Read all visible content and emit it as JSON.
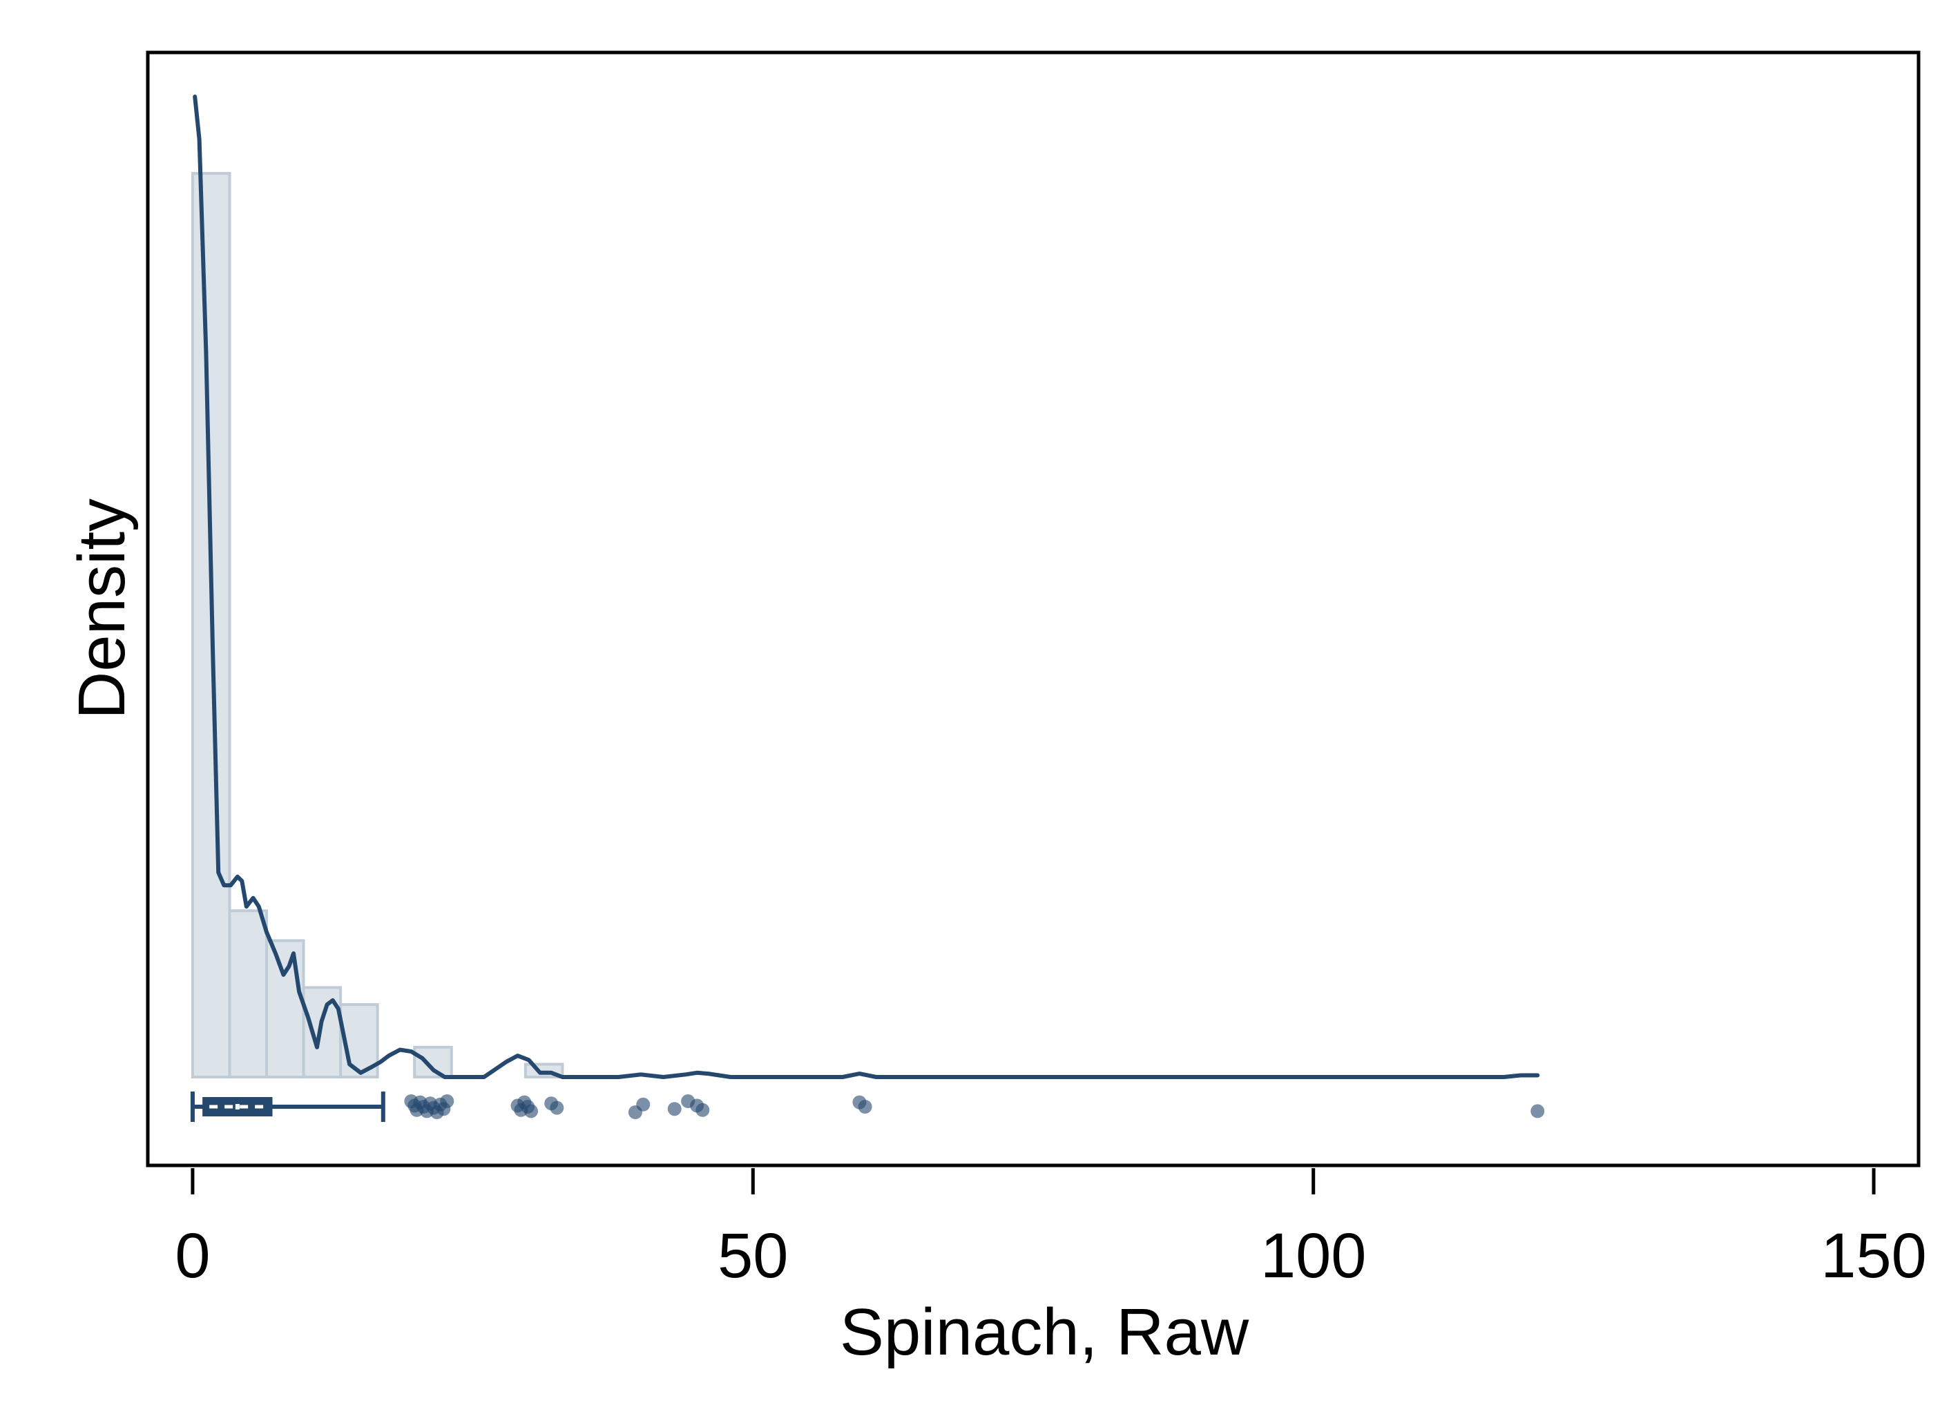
{
  "chart_data": {
    "type": "histogram",
    "title": "",
    "xlabel": "Spinach, Raw",
    "ylabel": "Density",
    "xlim": [
      -4,
      154
    ],
    "x_ticks": [
      0,
      50,
      100,
      150
    ],
    "x_tick_labels": [
      "0",
      "50",
      "100",
      "150"
    ],
    "y_ticks_shown": false,
    "grid": false,
    "legend": "none",
    "colors": {
      "line": "#24486e",
      "bar_fill": "#dce3e9",
      "bar_stroke": "#bfcbd6",
      "points": "#24486e",
      "frame": "#000000"
    },
    "histogram": {
      "bin_edges": [
        0,
        3.3,
        6.6,
        9.9,
        13.2,
        16.5,
        19.8,
        23.1,
        26.4,
        29.7,
        33.0
      ],
      "density": [
        0.106,
        0.0195,
        0.016,
        0.0105,
        0.0085,
        0.0,
        0.0035,
        0.0,
        0.0,
        0.0015
      ]
    },
    "density_curve": {
      "x": [
        0.2,
        0.6,
        1.2,
        1.8,
        2.3,
        2.8,
        3.4,
        4.0,
        4.4,
        4.8,
        5.4,
        5.9,
        6.6,
        7.4,
        8.1,
        8.6,
        9.0,
        9.5,
        10.3,
        11.1,
        11.5,
        12.0,
        12.5,
        13.0,
        14.0,
        15.0,
        16.0,
        16.8,
        17.5,
        18.5,
        19.5,
        20.5,
        21.5,
        22.5,
        23.5,
        24.5,
        26.0,
        28.0,
        29.0,
        30.0,
        31.0,
        32.0,
        33.0,
        35.0,
        38.0,
        40.0,
        42.0,
        44.0,
        45.0,
        46.0,
        48.0,
        55.0,
        58.0,
        59.5,
        61.0,
        63.0,
        80.0,
        100.0,
        117.0,
        118.5,
        120.0
      ],
      "y": [
        0.115,
        0.11,
        0.085,
        0.05,
        0.024,
        0.0225,
        0.0225,
        0.0235,
        0.023,
        0.02,
        0.021,
        0.02,
        0.017,
        0.0145,
        0.012,
        0.013,
        0.0145,
        0.01,
        0.007,
        0.0035,
        0.0065,
        0.0085,
        0.009,
        0.008,
        0.0015,
        0.0005,
        0.0012,
        0.0018,
        0.0025,
        0.0032,
        0.003,
        0.0022,
        0.0008,
        0.0,
        0.0,
        0.0,
        0.0,
        0.0018,
        0.0025,
        0.002,
        0.0005,
        0.0005,
        0.0,
        0.0,
        0.0,
        0.0003,
        0.0,
        0.0003,
        0.0005,
        0.0004,
        0.0,
        0.0,
        0.0,
        0.0004,
        0.0,
        0.0,
        0.0,
        0.0,
        0.0,
        0.0002,
        0.0002
      ],
      "y_max": 0.115
    },
    "boxplot": {
      "min": 0,
      "q1": 1,
      "median": 4,
      "q3": 7,
      "whisker_high": 17
    },
    "outliers": [
      19.5,
      19.8,
      20.0,
      20.3,
      20.6,
      20.9,
      21.2,
      21.5,
      21.8,
      22.1,
      22.4,
      22.7,
      29.0,
      29.3,
      29.6,
      29.9,
      30.2,
      32.0,
      32.5,
      39.5,
      40.2,
      43.0,
      44.2,
      45.0,
      45.5,
      59.5,
      60.0,
      120.0
    ]
  }
}
